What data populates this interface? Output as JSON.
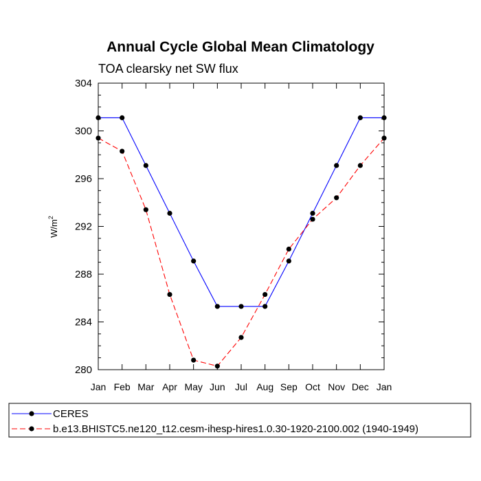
{
  "chart_data": {
    "type": "line",
    "title": "Annual Cycle Global Mean Climatology",
    "subtitle": "TOA clearsky net SW flux",
    "xlabel": "",
    "ylabel": "W/m",
    "ylabel_superscript": "2",
    "ylim": [
      280,
      304
    ],
    "yticks": [
      280,
      284,
      288,
      292,
      296,
      300,
      304
    ],
    "categories": [
      "Jan",
      "Feb",
      "Mar",
      "Apr",
      "May",
      "Jun",
      "Jul",
      "Aug",
      "Sep",
      "Oct",
      "Nov",
      "Dec",
      "Jan"
    ],
    "grid": false,
    "legend_position": "bottom",
    "series": [
      {
        "name": "CERES",
        "color": "#0000ff",
        "dash": "solid",
        "marker": "circle",
        "values": [
          301.1,
          301.1,
          297.1,
          293.1,
          289.1,
          285.3,
          285.3,
          285.3,
          289.1,
          293.1,
          297.1,
          301.1,
          301.1
        ]
      },
      {
        "name": "b.e13.BHISTC5.ne120_t12.cesm-ihesp-hires1.0.30-1920-2100.002 (1940-1949)",
        "color": "#ff0000",
        "dash": "dashed",
        "marker": "circle",
        "values": [
          299.4,
          298.3,
          293.4,
          286.3,
          280.8,
          280.3,
          282.7,
          286.3,
          290.1,
          292.6,
          294.4,
          297.1,
          299.4
        ]
      }
    ]
  }
}
